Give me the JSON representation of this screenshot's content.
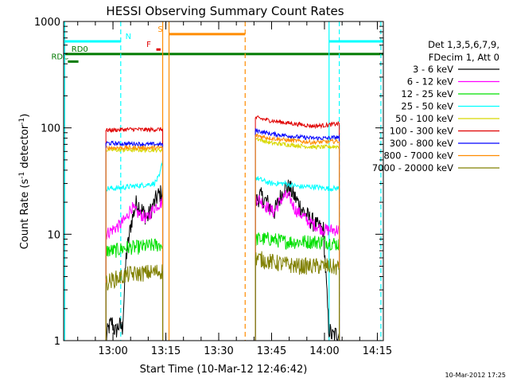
{
  "chart_data": {
    "type": "line",
    "title": "HESSI Observing Summary Count Rates",
    "xlabel": "Start Time (10-Mar-12 12:46:42)",
    "ylabel_base": "Count Rate (s",
    "ylabel_sup": "-1",
    "ylabel_mid": " detector",
    "ylabel_sup2": "-1",
    "ylabel_end": ")",
    "y_scale": "log",
    "ylim": [
      1,
      1000
    ],
    "xlim_minutes": [
      -0.7,
      90.0
    ],
    "y_ticks": [
      {
        "value": 1,
        "label": "1"
      },
      {
        "value": 10,
        "label": "10"
      },
      {
        "value": 100,
        "label": "100"
      },
      {
        "value": 1000,
        "label": "1000"
      }
    ],
    "x_ticks": [
      {
        "value": 13.3,
        "label": "13:00"
      },
      {
        "value": 28.3,
        "label": "13:15"
      },
      {
        "value": 43.3,
        "label": "13:30"
      },
      {
        "value": 58.3,
        "label": "13:45"
      },
      {
        "value": 73.3,
        "label": "14:00"
      },
      {
        "value": 88.3,
        "label": "14:15"
      }
    ],
    "legend": {
      "placement": "right",
      "header": [
        "Det 1,3,5,6,7,9,",
        "FDecim 1, Att 0"
      ],
      "entries": [
        {
          "label": "3 - 6 keV",
          "color": "#000000"
        },
        {
          "label": "6 - 12 keV",
          "color": "#ff00ff"
        },
        {
          "label": "12 - 25 keV",
          "color": "#00e000"
        },
        {
          "label": "25 - 50 keV",
          "color": "#00ffff"
        },
        {
          "label": "50 - 100 keV",
          "color": "#d8d800"
        },
        {
          "label": "100 - 300 keV",
          "color": "#e00000"
        },
        {
          "label": "300 - 800 keV",
          "color": "#0000ff"
        },
        {
          "label": "800 - 7000 keV",
          "color": "#ff8c00"
        },
        {
          "label": "7000 - 20000 keV",
          "color": "#808000"
        }
      ]
    },
    "segments": [
      {
        "x0": 11.3,
        "x1": 27.4
      },
      {
        "x0": 53.7,
        "x1": 77.5
      }
    ],
    "series": [
      {
        "name": "3 - 6 keV",
        "color": "#000000",
        "pts": [
          [
            [
              11.3,
              1.0
            ],
            [
              12.0,
              1.3
            ],
            [
              13.0,
              1.5
            ],
            [
              14.0,
              1.2
            ],
            [
              15.0,
              1.4
            ],
            [
              16.0,
              1.3
            ],
            [
              17.0,
              6
            ],
            [
              18.5,
              13
            ],
            [
              20,
              20
            ],
            [
              21.5,
              17
            ],
            [
              23,
              14
            ],
            [
              24.5,
              18
            ],
            [
              26,
              23
            ],
            [
              27.4,
              25
            ]
          ],
          [
            [
              53.7,
              20
            ],
            [
              55,
              23
            ],
            [
              57,
              20
            ],
            [
              59,
              16
            ],
            [
              60.5,
              21
            ],
            [
              62,
              28
            ],
            [
              63.5,
              27
            ],
            [
              65,
              22
            ],
            [
              67,
              17
            ],
            [
              69,
              14
            ],
            [
              71,
              12
            ],
            [
              73,
              11
            ],
            [
              74.5,
              1.3
            ],
            [
              75.5,
              1.1
            ],
            [
              77.5,
              1.2
            ]
          ]
        ]
      },
      {
        "name": "6 - 12 keV",
        "color": "#ff00ff",
        "pts": [
          [
            [
              11.3,
              10
            ],
            [
              13,
              11
            ],
            [
              15,
              12
            ],
            [
              17,
              14
            ],
            [
              18.5,
              18
            ],
            [
              20,
              16
            ],
            [
              21.5,
              15
            ],
            [
              23,
              14
            ],
            [
              24.5,
              17
            ],
            [
              26,
              19
            ],
            [
              27.4,
              20
            ]
          ],
          [
            [
              53.7,
              22
            ],
            [
              55,
              21
            ],
            [
              57,
              18
            ],
            [
              59,
              16
            ],
            [
              60.5,
              20
            ],
            [
              62,
              23
            ],
            [
              63.5,
              22
            ],
            [
              65,
              17
            ],
            [
              67,
              15
            ],
            [
              69,
              13
            ],
            [
              71,
              12
            ],
            [
              73,
              11
            ],
            [
              75,
              11
            ],
            [
              77.5,
              11
            ]
          ]
        ]
      },
      {
        "name": "12 - 25 keV",
        "color": "#00e000",
        "pts": [
          [
            [
              11.3,
              7
            ],
            [
              14,
              7
            ],
            [
              17,
              7.5
            ],
            [
              20,
              7.5
            ],
            [
              24,
              7.8
            ],
            [
              27.4,
              8
            ]
          ],
          [
            [
              53.7,
              9
            ],
            [
              58,
              9
            ],
            [
              62,
              8.5
            ],
            [
              66,
              8.5
            ],
            [
              70,
              8.5
            ],
            [
              74,
              8.5
            ],
            [
              77.5,
              8
            ]
          ]
        ]
      },
      {
        "name": "25 - 50 keV",
        "color": "#00ffff",
        "pts": [
          [
            [
              11.3,
              27
            ],
            [
              14,
              27
            ],
            [
              18,
              28
            ],
            [
              22,
              29
            ],
            [
              25,
              30
            ],
            [
              26.5,
              35
            ],
            [
              27.4,
              50
            ]
          ],
          [
            [
              53.7,
              34
            ],
            [
              58,
              30
            ],
            [
              62,
              30
            ],
            [
              66,
              28
            ],
            [
              70,
              28
            ],
            [
              74,
              27
            ],
            [
              77.5,
              27
            ]
          ]
        ]
      },
      {
        "name": "50 - 100 keV",
        "color": "#d8d800",
        "pts": [
          [
            [
              11.3,
              62
            ],
            [
              15,
              62
            ],
            [
              19,
              62
            ],
            [
              23,
              62
            ],
            [
              27.4,
              62
            ]
          ],
          [
            [
              53.7,
              80
            ],
            [
              58,
              72
            ],
            [
              62,
              70
            ],
            [
              66,
              68
            ],
            [
              70,
              66
            ],
            [
              74,
              66
            ],
            [
              77.5,
              67
            ]
          ]
        ]
      },
      {
        "name": "100 - 300 keV",
        "color": "#e00000",
        "pts": [
          [
            [
              11.3,
              95
            ],
            [
              15,
              96
            ],
            [
              19,
              97
            ],
            [
              23,
              96
            ],
            [
              27.4,
              97
            ]
          ],
          [
            [
              53.7,
              125
            ],
            [
              58,
              117
            ],
            [
              62,
              112
            ],
            [
              66,
              108
            ],
            [
              70,
              104
            ],
            [
              74,
              106
            ],
            [
              77.5,
              110
            ]
          ]
        ]
      },
      {
        "name": "300 - 800 keV",
        "color": "#0000ff",
        "pts": [
          [
            [
              11.3,
              72
            ],
            [
              15,
              71
            ],
            [
              19,
              71
            ],
            [
              23,
              70
            ],
            [
              27.4,
              70
            ]
          ],
          [
            [
              53.7,
              95
            ],
            [
              58,
              88
            ],
            [
              62,
              85
            ],
            [
              66,
              82
            ],
            [
              70,
              80
            ],
            [
              74,
              80
            ],
            [
              77.5,
              82
            ]
          ]
        ]
      },
      {
        "name": "800 - 7000 keV",
        "color": "#ff8c00",
        "pts": [
          [
            [
              11.3,
              65
            ],
            [
              15,
              65
            ],
            [
              19,
              65
            ],
            [
              23,
              65
            ],
            [
              27.4,
              65
            ]
          ],
          [
            [
              53.7,
              85
            ],
            [
              58,
              80
            ],
            [
              62,
              77
            ],
            [
              66,
              75
            ],
            [
              70,
              73
            ],
            [
              74,
              74
            ],
            [
              77.5,
              75
            ]
          ]
        ]
      },
      {
        "name": "7000 - 20000 keV",
        "color": "#808000",
        "pts": [
          [
            [
              11.3,
              3.5
            ],
            [
              14,
              3.8
            ],
            [
              18,
              4.2
            ],
            [
              22,
              4.3
            ],
            [
              27.4,
              4.5
            ]
          ],
          [
            [
              53.7,
              6.0
            ],
            [
              58,
              5.5
            ],
            [
              62,
              5.2
            ],
            [
              66,
              5.0
            ],
            [
              70,
              5.0
            ],
            [
              74,
              5.0
            ],
            [
              77.5,
              4.8
            ]
          ]
        ]
      }
    ],
    "vlines": [
      {
        "x": -0.4,
        "color": "#00ffff",
        "dash": false
      },
      {
        "x": 15.5,
        "color": "#00ffff",
        "dash": true
      },
      {
        "x": 27.4,
        "color": "#ff8c00",
        "dash": false
      },
      {
        "x": 29.2,
        "color": "#ff8c00",
        "dash": false
      },
      {
        "x": 50.8,
        "color": "#ff8c00",
        "dash": true
      },
      {
        "x": 74.6,
        "color": "#00ffff",
        "dash": false
      },
      {
        "x": 77.5,
        "color": "#00ffff",
        "dash": true
      },
      {
        "x": 89.3,
        "color": "#00ffff",
        "dash": true
      }
    ],
    "flag_bars": [
      {
        "label": "N",
        "color": "#00ffff",
        "y": 650,
        "ranges": [
          [
            -0.4,
            15.5
          ],
          [
            74.6,
            90
          ]
        ],
        "label_x": 16.8
      },
      {
        "label": "S",
        "color": "#ff8c00",
        "y": 760,
        "ranges": [
          [
            29.2,
            50.8
          ]
        ],
        "label_x": 26.0
      },
      {
        "label": "F",
        "color": "#e00000",
        "y": 545,
        "ranges": [
          [
            25.6,
            26.8
          ]
        ],
        "label_x": 22.8
      },
      {
        "label": "RD0",
        "color": "#007a00",
        "y": 495,
        "ranges": [
          [
            -0.7,
            90
          ]
        ],
        "label_x": 1.5
      },
      {
        "label": "RDC",
        "color": "#007a00",
        "y": 420,
        "ranges": [
          [
            0.5,
            3.5
          ]
        ],
        "label_x": -4.2
      }
    ]
  },
  "timestamp": "10-Mar-2012 17:25"
}
